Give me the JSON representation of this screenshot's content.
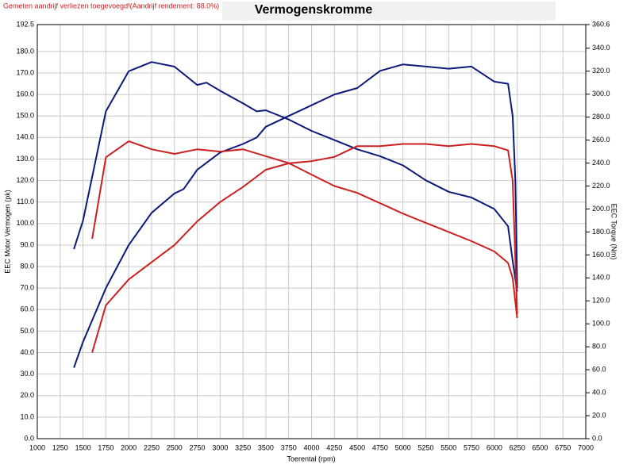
{
  "chart_data": {
    "type": "line",
    "title": "Vermogenskromme",
    "subtitle": "Gemeten aandrijf verliezen toegevoegd!(Aandrijf rendement: 88.0%)",
    "xlabel": "Toerental (rpm)",
    "ylabel": "EEC Motor Vermogen (pk)",
    "y2label": "EEC Torque (Nm)",
    "xlim": [
      1000,
      7000
    ],
    "xticks": [
      1000,
      1250,
      1500,
      1750,
      2000,
      2250,
      2500,
      2750,
      3000,
      3250,
      3500,
      3750,
      4000,
      4250,
      4500,
      4750,
      5000,
      5250,
      5500,
      5750,
      6000,
      6250,
      6500,
      6750,
      7000
    ],
    "ylim": [
      0,
      192.5
    ],
    "yticks": [
      {
        "value": 0,
        "label": "0.0"
      },
      {
        "value": 10,
        "label": "10.0"
      },
      {
        "value": 20,
        "label": "20.0"
      },
      {
        "value": 30,
        "label": "30.0"
      },
      {
        "value": 40,
        "label": "40.0"
      },
      {
        "value": 50,
        "label": "50.0"
      },
      {
        "value": 60,
        "label": "60.0"
      },
      {
        "value": 70,
        "label": "70.0"
      },
      {
        "value": 80,
        "label": "80.0"
      },
      {
        "value": 90,
        "label": "90.0"
      },
      {
        "value": 100,
        "label": "100.0"
      },
      {
        "value": 110,
        "label": "110.0"
      },
      {
        "value": 120,
        "label": "120.0"
      },
      {
        "value": 130,
        "label": "130.0"
      },
      {
        "value": 140,
        "label": "140.0"
      },
      {
        "value": 150,
        "label": "150.0"
      },
      {
        "value": 160,
        "label": "160.0"
      },
      {
        "value": 170,
        "label": "170.0"
      },
      {
        "value": 180,
        "label": "180.0"
      },
      {
        "value": 192.5,
        "label": "192.5"
      }
    ],
    "y2lim": [
      0,
      360.6
    ],
    "y2ticks": [
      {
        "value": 0,
        "label": "0.0"
      },
      {
        "value": 20,
        "label": "20.0"
      },
      {
        "value": 40,
        "label": "40.0"
      },
      {
        "value": 60,
        "label": "60.0"
      },
      {
        "value": 80,
        "label": "80.0"
      },
      {
        "value": 100,
        "label": "100.0"
      },
      {
        "value": 120,
        "label": "120.0"
      },
      {
        "value": 140,
        "label": "140.0"
      },
      {
        "value": 160,
        "label": "160.0"
      },
      {
        "value": 180,
        "label": "180.0"
      },
      {
        "value": 200,
        "label": "200.0"
      },
      {
        "value": 220,
        "label": "220.0"
      },
      {
        "value": 240,
        "label": "240.0"
      },
      {
        "value": 260,
        "label": "260.0"
      },
      {
        "value": 280,
        "label": "280.0"
      },
      {
        "value": 300,
        "label": "300.0"
      },
      {
        "value": 320,
        "label": "320.0"
      },
      {
        "value": 340,
        "label": "340.0"
      },
      {
        "value": 360.6,
        "label": "360.6"
      }
    ],
    "grid": true,
    "series": [
      {
        "color": "#0b1a78",
        "axis": "y",
        "x": [
          1400,
          1500,
          1750,
          2000,
          2250,
          2500,
          2600,
          2750,
          3000,
          3250,
          3400,
          3500,
          3750,
          4000,
          4250,
          4500,
          4750,
          5000,
          5250,
          5500,
          5750,
          6000,
          6150,
          6200,
          6230,
          6250
        ],
        "values": [
          33,
          45,
          70,
          90,
          105,
          114,
          116,
          125,
          133,
          137,
          140,
          145,
          150,
          155,
          160,
          163,
          171,
          174,
          173,
          172,
          173,
          166,
          165,
          150,
          120,
          70
        ]
      },
      {
        "color": "#0b1a78",
        "axis": "y2",
        "x": [
          1400,
          1500,
          1750,
          2000,
          2250,
          2500,
          2750,
          2850,
          3000,
          3250,
          3400,
          3500,
          3750,
          4000,
          4250,
          4500,
          4750,
          5000,
          5250,
          5500,
          5750,
          6000,
          6150,
          6200,
          6250
        ],
        "values": [
          165,
          190,
          285,
          320,
          328,
          324,
          308,
          310,
          303,
          292,
          285,
          286,
          278,
          268,
          260,
          252,
          246,
          238,
          225,
          215,
          210,
          200,
          185,
          155,
          128
        ]
      },
      {
        "color": "#cc2020",
        "axis": "y",
        "x": [
          1600,
          1750,
          2000,
          2250,
          2500,
          2750,
          3000,
          3250,
          3500,
          3750,
          4000,
          4250,
          4500,
          4750,
          5000,
          5250,
          5500,
          5750,
          6000,
          6150,
          6200,
          6250
        ],
        "values": [
          40,
          62,
          74,
          82,
          90,
          101,
          110,
          117,
          125,
          128,
          129,
          131,
          136,
          136,
          137,
          137,
          136,
          137,
          136,
          134,
          120,
          58
        ]
      },
      {
        "color": "#cc2020",
        "axis": "y2",
        "x": [
          1600,
          1750,
          2000,
          2250,
          2500,
          2750,
          3000,
          3250,
          3500,
          3750,
          4000,
          4250,
          4500,
          4750,
          5000,
          5250,
          5500,
          5750,
          6000,
          6150,
          6200,
          6250
        ],
        "values": [
          174,
          245,
          259,
          252,
          248,
          252,
          250,
          252,
          246,
          240,
          230,
          220,
          214,
          205,
          196,
          188,
          180,
          172,
          163,
          153,
          140,
          105
        ]
      }
    ]
  }
}
